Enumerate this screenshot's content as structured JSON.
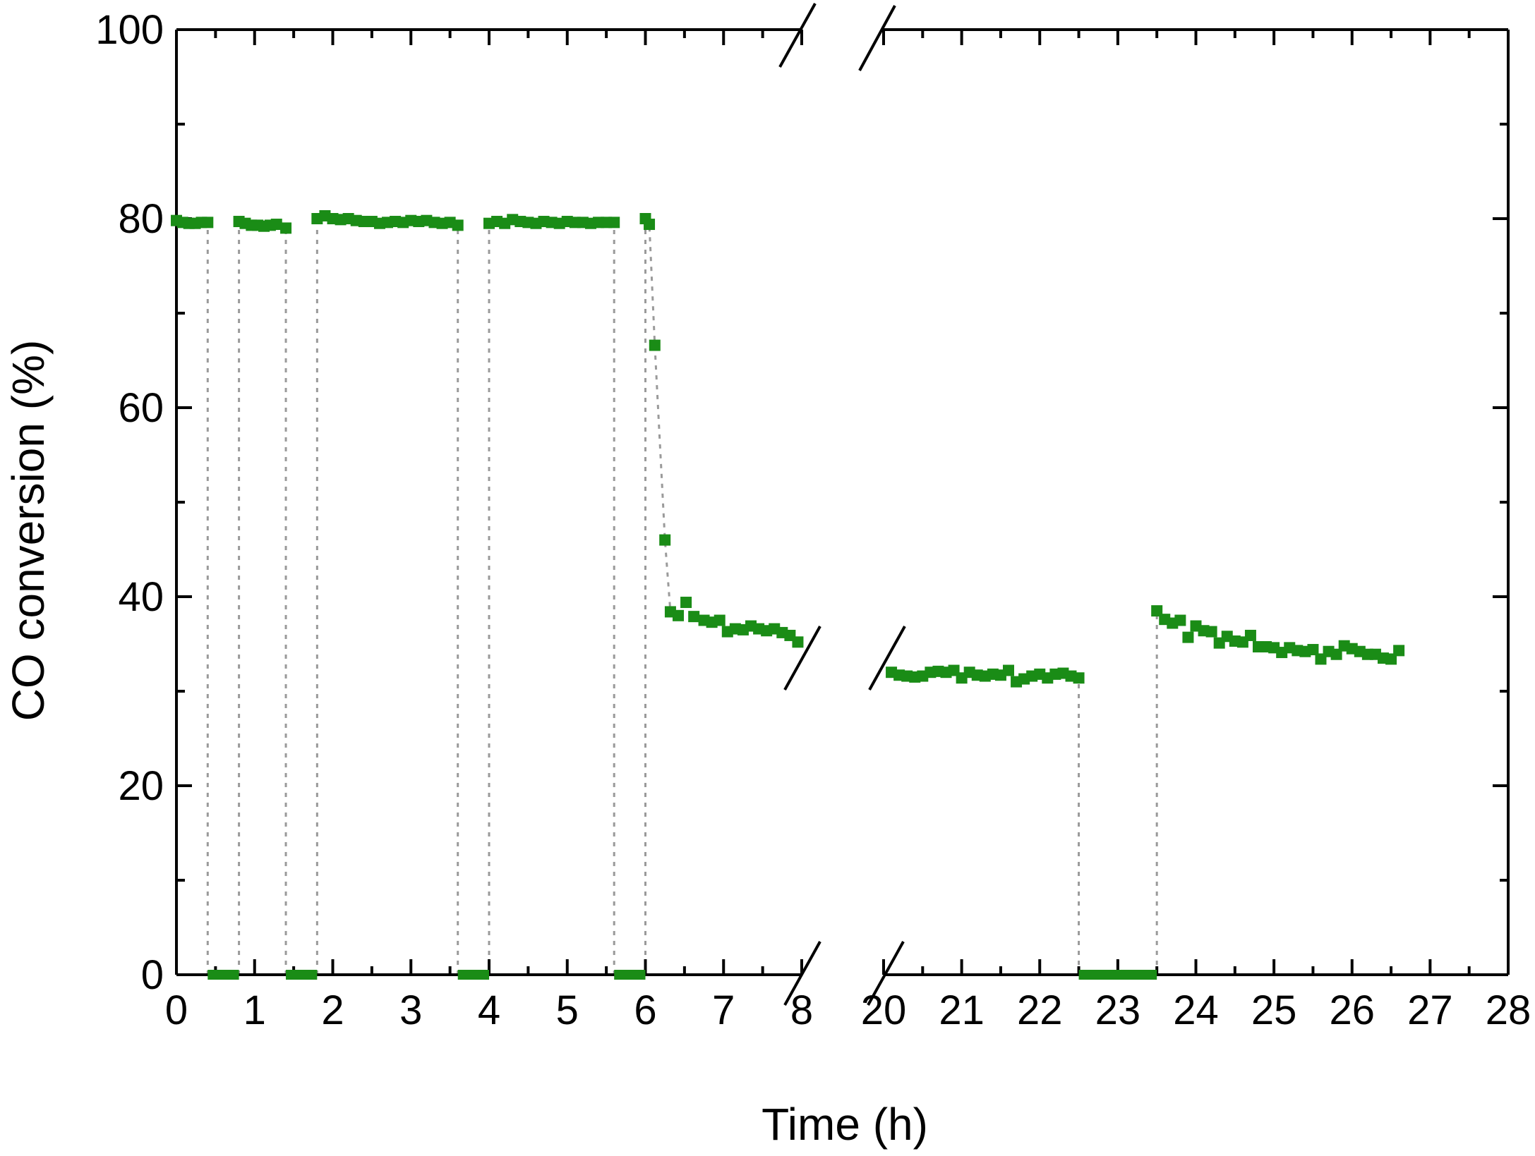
{
  "chart_data": {
    "type": "scatter",
    "title": "",
    "xlabel": "Time (h)",
    "ylabel": "CO conversion (%)",
    "ylim": [
      0,
      100
    ],
    "x_break": [
      8,
      20
    ],
    "x_segments": [
      [
        0,
        8
      ],
      [
        20,
        28
      ]
    ],
    "x_ticks": [
      0,
      1,
      2,
      3,
      4,
      5,
      6,
      7,
      8,
      20,
      21,
      22,
      23,
      24,
      25,
      26,
      27,
      28
    ],
    "y_ticks": [
      0,
      20,
      40,
      60,
      80,
      100
    ],
    "grid": false,
    "legend": "none",
    "color": "#1a8c16",
    "guide_color": "#9a9a9a",
    "series": [
      {
        "points": [
          [
            0.0,
            79.8
          ],
          [
            0.08,
            79.6
          ],
          [
            0.16,
            79.5
          ],
          [
            0.24,
            79.5
          ],
          [
            0.32,
            79.6
          ],
          [
            0.4,
            79.6
          ],
          [
            0.8,
            79.7
          ],
          [
            0.88,
            79.5
          ],
          [
            0.96,
            79.3
          ],
          [
            1.04,
            79.3
          ],
          [
            1.12,
            79.2
          ],
          [
            1.2,
            79.3
          ],
          [
            1.28,
            79.4
          ],
          [
            1.4,
            79.0
          ],
          [
            1.8,
            80.0
          ],
          [
            1.9,
            80.3
          ],
          [
            2.0,
            80.0
          ],
          [
            2.1,
            79.9
          ],
          [
            2.2,
            80.0
          ],
          [
            2.3,
            79.8
          ],
          [
            2.4,
            79.7
          ],
          [
            2.5,
            79.7
          ],
          [
            2.6,
            79.5
          ],
          [
            2.7,
            79.6
          ],
          [
            2.8,
            79.7
          ],
          [
            2.9,
            79.6
          ],
          [
            3.0,
            79.8
          ],
          [
            3.1,
            79.7
          ],
          [
            3.2,
            79.8
          ],
          [
            3.3,
            79.6
          ],
          [
            3.4,
            79.5
          ],
          [
            3.5,
            79.6
          ],
          [
            3.6,
            79.3
          ],
          [
            4.0,
            79.5
          ],
          [
            4.1,
            79.7
          ],
          [
            4.2,
            79.5
          ],
          [
            4.3,
            79.9
          ],
          [
            4.4,
            79.7
          ],
          [
            4.5,
            79.6
          ],
          [
            4.6,
            79.5
          ],
          [
            4.7,
            79.7
          ],
          [
            4.8,
            79.6
          ],
          [
            4.9,
            79.5
          ],
          [
            5.0,
            79.7
          ],
          [
            5.1,
            79.6
          ],
          [
            5.2,
            79.6
          ],
          [
            5.3,
            79.5
          ],
          [
            5.4,
            79.6
          ],
          [
            5.5,
            79.6
          ],
          [
            5.6,
            79.6
          ],
          [
            6.0,
            80.0
          ],
          [
            6.05,
            79.4
          ],
          [
            6.12,
            66.6
          ],
          [
            6.25,
            46.0
          ],
          [
            6.32,
            38.4
          ],
          [
            6.42,
            38.0
          ],
          [
            6.52,
            39.4
          ],
          [
            6.62,
            37.9
          ],
          [
            6.75,
            37.5
          ],
          [
            6.85,
            37.3
          ],
          [
            6.95,
            37.5
          ],
          [
            7.05,
            36.3
          ],
          [
            7.15,
            36.6
          ],
          [
            7.25,
            36.5
          ],
          [
            7.35,
            36.9
          ],
          [
            7.45,
            36.6
          ],
          [
            7.55,
            36.4
          ],
          [
            7.65,
            36.6
          ],
          [
            7.75,
            36.2
          ],
          [
            7.85,
            35.9
          ],
          [
            7.95,
            35.2
          ],
          [
            20.1,
            32.0
          ],
          [
            20.2,
            31.7
          ],
          [
            20.3,
            31.6
          ],
          [
            20.4,
            31.5
          ],
          [
            20.5,
            31.6
          ],
          [
            20.6,
            32.0
          ],
          [
            20.7,
            32.1
          ],
          [
            20.8,
            32.0
          ],
          [
            20.9,
            32.2
          ],
          [
            21.0,
            31.4
          ],
          [
            21.1,
            32.0
          ],
          [
            21.2,
            31.7
          ],
          [
            21.3,
            31.6
          ],
          [
            21.4,
            31.8
          ],
          [
            21.5,
            31.7
          ],
          [
            21.6,
            32.2
          ],
          [
            21.7,
            31.0
          ],
          [
            21.8,
            31.3
          ],
          [
            21.9,
            31.6
          ],
          [
            22.0,
            31.8
          ],
          [
            22.1,
            31.4
          ],
          [
            22.2,
            31.8
          ],
          [
            22.3,
            31.9
          ],
          [
            22.4,
            31.6
          ],
          [
            22.5,
            31.4
          ],
          [
            23.5,
            38.5
          ],
          [
            23.6,
            37.6
          ],
          [
            23.7,
            37.2
          ],
          [
            23.8,
            37.5
          ],
          [
            23.9,
            35.7
          ],
          [
            24.0,
            36.9
          ],
          [
            24.1,
            36.4
          ],
          [
            24.2,
            36.3
          ],
          [
            24.3,
            35.1
          ],
          [
            24.4,
            35.8
          ],
          [
            24.5,
            35.3
          ],
          [
            24.6,
            35.2
          ],
          [
            24.7,
            35.9
          ],
          [
            24.8,
            34.7
          ],
          [
            24.9,
            34.7
          ],
          [
            25.0,
            34.6
          ],
          [
            25.1,
            34.1
          ],
          [
            25.2,
            34.6
          ],
          [
            25.3,
            34.3
          ],
          [
            25.4,
            34.2
          ],
          [
            25.5,
            34.4
          ],
          [
            25.6,
            33.4
          ],
          [
            25.7,
            34.2
          ],
          [
            25.8,
            33.9
          ],
          [
            25.9,
            34.8
          ],
          [
            26.0,
            34.5
          ],
          [
            26.1,
            34.2
          ],
          [
            26.2,
            33.9
          ],
          [
            26.3,
            33.9
          ],
          [
            26.4,
            33.5
          ],
          [
            26.5,
            33.4
          ],
          [
            26.6,
            34.3
          ]
        ],
        "zero_ranges": [
          [
            0.4,
            0.8
          ],
          [
            1.4,
            1.8
          ],
          [
            3.6,
            4.0
          ],
          [
            5.6,
            6.0
          ],
          [
            22.5,
            23.5
          ]
        ],
        "guide_lines": [
          0.4,
          0.8,
          1.4,
          1.8,
          3.6,
          4.0,
          5.6,
          6.0,
          22.5,
          23.5
        ]
      }
    ]
  }
}
